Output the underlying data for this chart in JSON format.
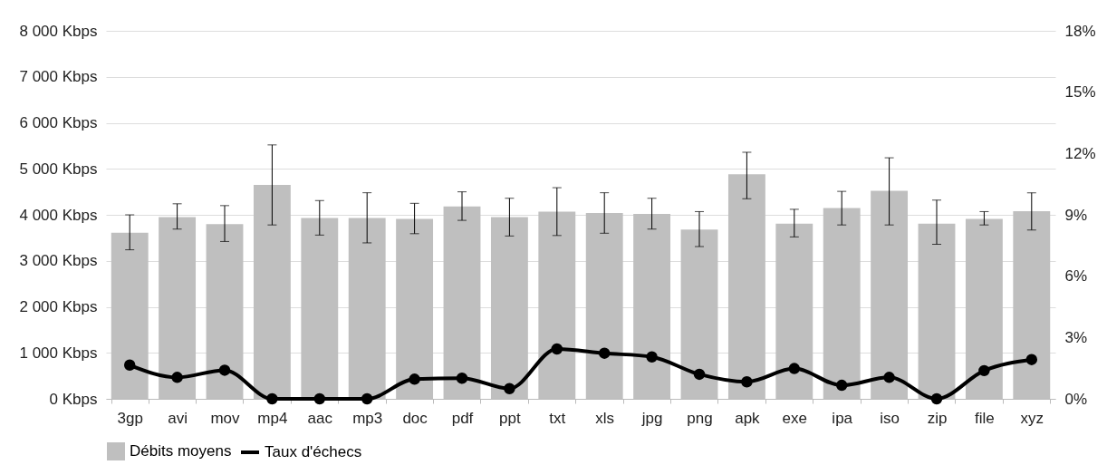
{
  "chart_data": {
    "type": "bar",
    "categories": [
      "3gp",
      "avi",
      "mov",
      "mp4",
      "aac",
      "mp3",
      "doc",
      "pdf",
      "ppt",
      "txt",
      "xls",
      "jpg",
      "png",
      "apk",
      "exe",
      "ipa",
      "iso",
      "zip",
      "file",
      "xyz"
    ],
    "series": [
      {
        "name": "Débits moyens",
        "color": "#bfbfbf",
        "values": [
          3610,
          3950,
          3800,
          4650,
          3930,
          3930,
          3910,
          4180,
          3950,
          4070,
          4040,
          4020,
          3680,
          4880,
          3810,
          4150,
          4520,
          3810,
          3910,
          4080
        ],
        "errors": [
          [
            3240,
            4000
          ],
          [
            3690,
            4240
          ],
          [
            3420,
            4200
          ],
          [
            3780,
            5520
          ],
          [
            3560,
            4310
          ],
          [
            3390,
            4480
          ],
          [
            3590,
            4250
          ],
          [
            3880,
            4500
          ],
          [
            3540,
            4360
          ],
          [
            3550,
            4590
          ],
          [
            3600,
            4480
          ],
          [
            3690,
            4360
          ],
          [
            3310,
            4070
          ],
          [
            4350,
            5360
          ],
          [
            3520,
            4120
          ],
          [
            3780,
            4510
          ],
          [
            3780,
            5240
          ],
          [
            3360,
            4320
          ],
          [
            3780,
            4070
          ],
          [
            3670,
            4480
          ]
        ]
      },
      {
        "name": "Taux d'échecs",
        "type": "line",
        "axis": "y2",
        "color": "#000000",
        "values": [
          1.65,
          1.05,
          1.4,
          0,
          0,
          0,
          0.96,
          1.01,
          0.5,
          2.44,
          2.23,
          2.05,
          1.2,
          0.83,
          1.48,
          0.66,
          1.05,
          0,
          1.38,
          1.92
        ]
      }
    ],
    "ylim": [
      0,
      8000
    ],
    "yticks": [
      {
        "value": 0,
        "label": "0 Kbps"
      },
      {
        "value": 1000,
        "label": "1 000 Kbps"
      },
      {
        "value": 2000,
        "label": "2 000 Kbps"
      },
      {
        "value": 3000,
        "label": "3 000 Kbps"
      },
      {
        "value": 4000,
        "label": "4 000 Kbps"
      },
      {
        "value": 5000,
        "label": "5 000 Kbps"
      },
      {
        "value": 6000,
        "label": "6 000 Kbps"
      },
      {
        "value": 7000,
        "label": "7 000 Kbps"
      },
      {
        "value": 8000,
        "label": "8 000 Kbps"
      }
    ],
    "y2lim": [
      0,
      18
    ],
    "y2ticks": [
      {
        "value": 0,
        "label": "0%"
      },
      {
        "value": 3,
        "label": "3%"
      },
      {
        "value": 6,
        "label": "6%"
      },
      {
        "value": 9,
        "label": "9%"
      },
      {
        "value": 12,
        "label": "12%"
      },
      {
        "value": 15,
        "label": "15%"
      },
      {
        "value": 18,
        "label": "18%"
      }
    ],
    "grid": "y",
    "legend": "bottom",
    "marker": "circle"
  }
}
